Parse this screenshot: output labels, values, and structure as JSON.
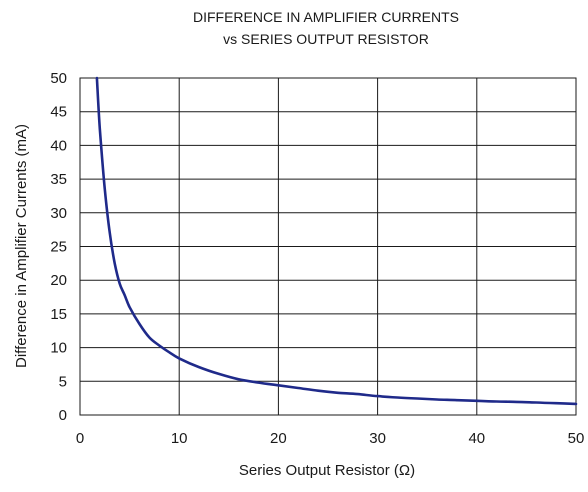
{
  "chart_data": {
    "type": "line",
    "title_lines": [
      "DIFFERENCE IN AMPLIFIER CURRENTS",
      "vs SERIES OUTPUT RESISTOR"
    ],
    "xlabel": "Series Output Resistor (Ω)",
    "ylabel": "Difference in Amplifier Currents (mA)",
    "xlim": [
      0,
      50
    ],
    "ylim": [
      0,
      50
    ],
    "xticks": [
      0,
      10,
      20,
      30,
      40,
      50
    ],
    "yticks": [
      0,
      5,
      10,
      15,
      20,
      25,
      30,
      35,
      40,
      45,
      50
    ],
    "grid": true,
    "line_color": "#1f2a8a",
    "series": [
      {
        "x": [
          1.7,
          2.0,
          2.5,
          3.0,
          3.5,
          4.0,
          4.5,
          5.0,
          6.0,
          7.0,
          8.0,
          9.0,
          10.0,
          12.0,
          14.0,
          16.0,
          18.0,
          20.0,
          22.0,
          24.0,
          26.0,
          28.0,
          30.0,
          32.0,
          34.0,
          36.0,
          38.0,
          40.0,
          42.0,
          44.0,
          46.0,
          48.0,
          50.0
        ],
        "y": [
          50.0,
          42.5,
          33.5,
          27.0,
          22.5,
          19.5,
          17.8,
          16.0,
          13.5,
          11.5,
          10.3,
          9.3,
          8.4,
          7.1,
          6.1,
          5.3,
          4.8,
          4.4,
          4.0,
          3.6,
          3.3,
          3.1,
          2.8,
          2.6,
          2.45,
          2.3,
          2.2,
          2.1,
          2.0,
          1.95,
          1.85,
          1.75,
          1.65
        ]
      }
    ]
  }
}
